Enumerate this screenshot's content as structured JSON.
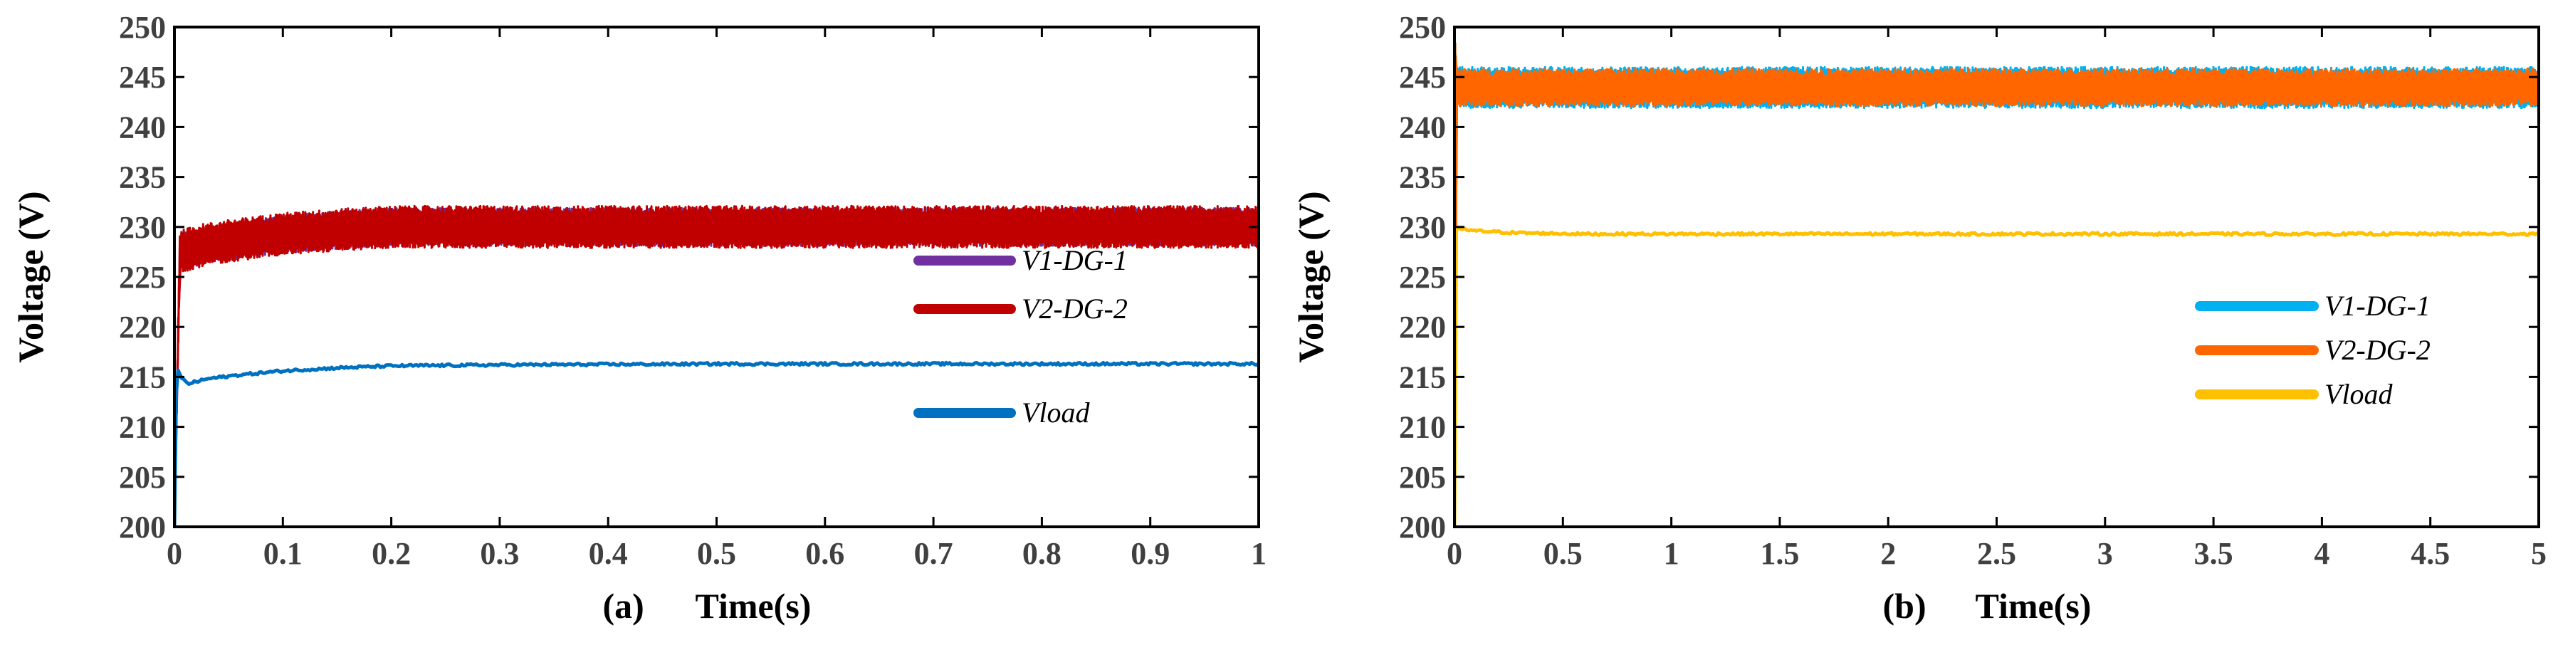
{
  "chart_data": [
    {
      "type": "line",
      "panel_label": "(a)",
      "xlabel": "Time(s)",
      "ylabel": "Voltage (V)",
      "xlim": [
        0,
        1
      ],
      "ylim": [
        200,
        250
      ],
      "xticks": [
        0,
        0.1,
        0.2,
        0.3,
        0.4,
        0.5,
        0.6,
        0.7,
        0.8,
        0.9,
        1
      ],
      "xtick_labels": [
        "0",
        "0.1",
        "0.2",
        "0.3",
        "0.4",
        "0.5",
        "0.6",
        "0.7",
        "0.8",
        "0.9",
        "1"
      ],
      "yticks": [
        200,
        205,
        210,
        215,
        220,
        225,
        230,
        235,
        240,
        245,
        250
      ],
      "ytick_labels": [
        "200",
        "205",
        "210",
        "215",
        "220",
        "225",
        "230",
        "235",
        "240",
        "245",
        "250"
      ],
      "legend_position": "center-right",
      "series": [
        {
          "name": "V1-DG-1",
          "color": "#7030A0",
          "band": true,
          "x": [
            0,
            0.005,
            0.02,
            0.05,
            0.1,
            0.15,
            0.2,
            0.3,
            0.5,
            0.7,
            1.0
          ],
          "low": [
            200,
            226,
            226.5,
            227,
            227.8,
            228.2,
            228.5,
            228.5,
            228.5,
            228.5,
            228.5
          ],
          "high": [
            200,
            229,
            229.5,
            230,
            230.8,
            231.2,
            231.5,
            231.5,
            231.5,
            231.5,
            231.5
          ]
        },
        {
          "name": "V2-DG-2",
          "color": "#C00000",
          "band": true,
          "x": [
            0,
            0.005,
            0.02,
            0.05,
            0.1,
            0.15,
            0.2,
            0.3,
            0.5,
            0.7,
            1.0
          ],
          "low": [
            200,
            225.8,
            226.3,
            226.9,
            227.6,
            228,
            228.3,
            228.3,
            228.3,
            228.3,
            228.3
          ],
          "high": [
            200,
            229.2,
            229.8,
            230.3,
            231,
            231.4,
            231.7,
            231.7,
            231.7,
            231.7,
            231.7
          ]
        },
        {
          "name": "Vload",
          "color": "#0070C0",
          "band": false,
          "x": [
            0,
            0.002,
            0.006,
            0.012,
            0.03,
            0.06,
            0.1,
            0.15,
            0.2,
            0.3,
            0.5,
            0.7,
            1.0
          ],
          "y": [
            200,
            216,
            215,
            214.3,
            214.8,
            215.2,
            215.6,
            215.9,
            216.1,
            216.2,
            216.3,
            216.3,
            216.3
          ]
        }
      ]
    },
    {
      "type": "line",
      "panel_label": "(b)",
      "xlabel": "Time(s)",
      "ylabel": "Voltage (V)",
      "xlim": [
        0,
        5
      ],
      "ylim": [
        200,
        250
      ],
      "xticks": [
        0,
        0.5,
        1,
        1.5,
        2,
        2.5,
        3,
        3.5,
        4,
        4.5,
        5
      ],
      "xtick_labels": [
        "0",
        "0.5",
        "1",
        "1.5",
        "2",
        "2.5",
        "3",
        "3.5",
        "4",
        "4.5",
        "5"
      ],
      "yticks": [
        200,
        205,
        210,
        215,
        220,
        225,
        230,
        235,
        240,
        245,
        250
      ],
      "ytick_labels": [
        "200",
        "205",
        "210",
        "215",
        "220",
        "225",
        "230",
        "235",
        "240",
        "245",
        "250"
      ],
      "legend_position": "center-right",
      "series": [
        {
          "name": "V1-DG-1",
          "color": "#00B0F0",
          "band": true,
          "x": [
            0,
            0.01,
            0.05,
            0.5,
            1,
            2,
            3,
            4,
            5
          ],
          "low": [
            200,
            242.2,
            242.3,
            242.3,
            242.3,
            242.3,
            242.3,
            242.3,
            242.3
          ],
          "high": [
            250,
            245.8,
            245.6,
            245.6,
            245.6,
            245.6,
            245.6,
            245.6,
            245.6
          ]
        },
        {
          "name": "V2-DG-2",
          "color": "#FF6600",
          "band": true,
          "x": [
            0,
            0.01,
            0.05,
            0.5,
            1,
            2,
            3,
            4,
            5
          ],
          "low": [
            200,
            242.4,
            242.5,
            242.5,
            242.5,
            242.5,
            242.5,
            242.5,
            242.5
          ],
          "high": [
            250,
            245.6,
            245.4,
            245.4,
            245.4,
            245.4,
            245.4,
            245.4,
            245.4
          ]
        },
        {
          "name": "Vload",
          "color": "#FFC000",
          "band": false,
          "x": [
            0,
            0.005,
            0.02,
            0.1,
            0.3,
            0.6,
            1,
            2,
            3,
            4,
            5
          ],
          "y": [
            200,
            229.9,
            229.8,
            229.6,
            229.4,
            229.3,
            229.3,
            229.3,
            229.3,
            229.3,
            229.3
          ]
        }
      ]
    }
  ]
}
